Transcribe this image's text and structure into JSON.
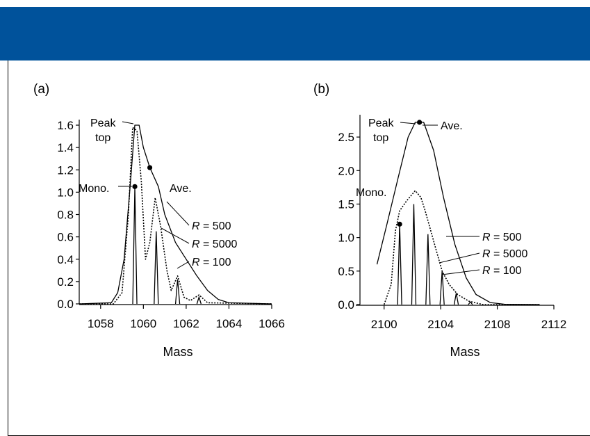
{
  "header": {
    "color": "#00529b"
  },
  "chart_data": [
    {
      "type": "line",
      "panel_label": "(a)",
      "xlabel": "Mass",
      "ylabel": "",
      "xlim": [
        1057,
        1066
      ],
      "ylim": [
        0,
        1.6
      ],
      "x_ticks": [
        1058,
        1060,
        1062,
        1064,
        1066
      ],
      "y_ticks": [
        0.0,
        0.2,
        0.4,
        0.6,
        0.8,
        1.0,
        1.2,
        1.4,
        1.6
      ],
      "series": [
        {
          "style": "solid-envelope",
          "points": [
            [
              1057,
              0
            ],
            [
              1058.5,
              0.01
            ],
            [
              1058.8,
              0.1
            ],
            [
              1059.1,
              0.4
            ],
            [
              1059.4,
              1.1
            ],
            [
              1059.6,
              1.6
            ],
            [
              1059.8,
              1.6
            ],
            [
              1060,
              1.4
            ],
            [
              1060.3,
              1.22
            ],
            [
              1060.7,
              1.05
            ],
            [
              1061,
              0.8
            ],
            [
              1061.5,
              0.55
            ],
            [
              1062,
              0.4
            ],
            [
              1062.5,
              0.25
            ],
            [
              1063,
              0.12
            ],
            [
              1063.5,
              0.04
            ],
            [
              1064,
              0.01
            ],
            [
              1066,
              0
            ]
          ]
        },
        {
          "style": "dotted",
          "points": [
            [
              1057,
              0
            ],
            [
              1058.6,
              0
            ],
            [
              1059,
              0.1
            ],
            [
              1059.3,
              0.8
            ],
            [
              1059.5,
              1.58
            ],
            [
              1059.7,
              1.55
            ],
            [
              1059.9,
              1.1
            ],
            [
              1060.1,
              0.4
            ],
            [
              1060.3,
              0.55
            ],
            [
              1060.55,
              0.95
            ],
            [
              1060.8,
              0.7
            ],
            [
              1061.1,
              0.3
            ],
            [
              1061.3,
              0.12
            ],
            [
              1061.6,
              0.25
            ],
            [
              1061.9,
              0.06
            ],
            [
              1062.2,
              0.03
            ],
            [
              1062.6,
              0.08
            ],
            [
              1063,
              0.01
            ],
            [
              1066,
              0
            ]
          ]
        },
        {
          "style": "solid-sticks",
          "points": [
            [
              1059.6,
              1.05
            ],
            [
              1060.6,
              0.65
            ],
            [
              1061.6,
              0.22
            ],
            [
              1062.6,
              0.06
            ]
          ]
        }
      ],
      "annotations": {
        "peak_top": [
          "Peak",
          "top"
        ],
        "ave": "Ave.",
        "mono": "Mono.",
        "r_labels": [
          {
            "italic": "R",
            "rest": " = 500"
          },
          {
            "italic": "R",
            "rest": " = 5000"
          },
          {
            "italic": "R",
            "rest": " = 100"
          }
        ]
      },
      "markers": {
        "mono": [
          1059.6,
          1.05
        ],
        "ave": [
          1060.3,
          1.22
        ]
      }
    },
    {
      "type": "line",
      "panel_label": "(b)",
      "xlabel": "Mass",
      "ylabel": "",
      "xlim": [
        2098,
        2112
      ],
      "ylim": [
        0,
        2.75
      ],
      "x_ticks": [
        2100,
        2104,
        2108,
        2112
      ],
      "y_ticks": [
        0.0,
        0.5,
        1.0,
        1.5,
        2.0,
        2.5
      ],
      "series": [
        {
          "style": "solid-envelope",
          "points": [
            [
              2099.5,
              0.6
            ],
            [
              2100.2,
              1.2
            ],
            [
              2101,
              1.9
            ],
            [
              2101.7,
              2.5
            ],
            [
              2102.2,
              2.72
            ],
            [
              2102.8,
              2.72
            ],
            [
              2103.5,
              2.3
            ],
            [
              2104.2,
              1.6
            ],
            [
              2105,
              0.9
            ],
            [
              2105.8,
              0.4
            ],
            [
              2106.5,
              0.15
            ],
            [
              2107.5,
              0.03
            ],
            [
              2108.5,
              0.005
            ],
            [
              2111,
              0
            ]
          ]
        },
        {
          "style": "dotted",
          "points": [
            [
              2100,
              0
            ],
            [
              2100.5,
              0.3
            ],
            [
              2100.8,
              1.1
            ],
            [
              2101.1,
              1.4
            ],
            [
              2101.6,
              1.55
            ],
            [
              2102.2,
              1.7
            ],
            [
              2102.6,
              1.6
            ],
            [
              2102.9,
              1.4
            ],
            [
              2103.3,
              1.1
            ],
            [
              2103.7,
              0.8
            ],
            [
              2104.1,
              0.5
            ],
            [
              2104.6,
              0.3
            ],
            [
              2105.2,
              0.15
            ],
            [
              2106,
              0.05
            ],
            [
              2107,
              0
            ],
            [
              2111,
              0
            ]
          ]
        },
        {
          "style": "solid-sticks",
          "points": [
            [
              2101.1,
              1.2
            ],
            [
              2102.1,
              1.5
            ],
            [
              2103.1,
              1.05
            ],
            [
              2104.1,
              0.5
            ],
            [
              2105.1,
              0.17
            ],
            [
              2106.1,
              0.04
            ]
          ]
        }
      ],
      "annotations": {
        "peak_top": [
          "Peak",
          "top"
        ],
        "ave": "Ave.",
        "mono": "Mono.",
        "r_labels": [
          {
            "italic": "R",
            "rest": " = 500"
          },
          {
            "italic": "R",
            "rest": " = 5000"
          },
          {
            "italic": "R",
            "rest": " = 100"
          }
        ]
      },
      "markers": {
        "mono": [
          2101.1,
          1.2
        ],
        "ave": [
          2102.5,
          2.72
        ]
      }
    }
  ]
}
